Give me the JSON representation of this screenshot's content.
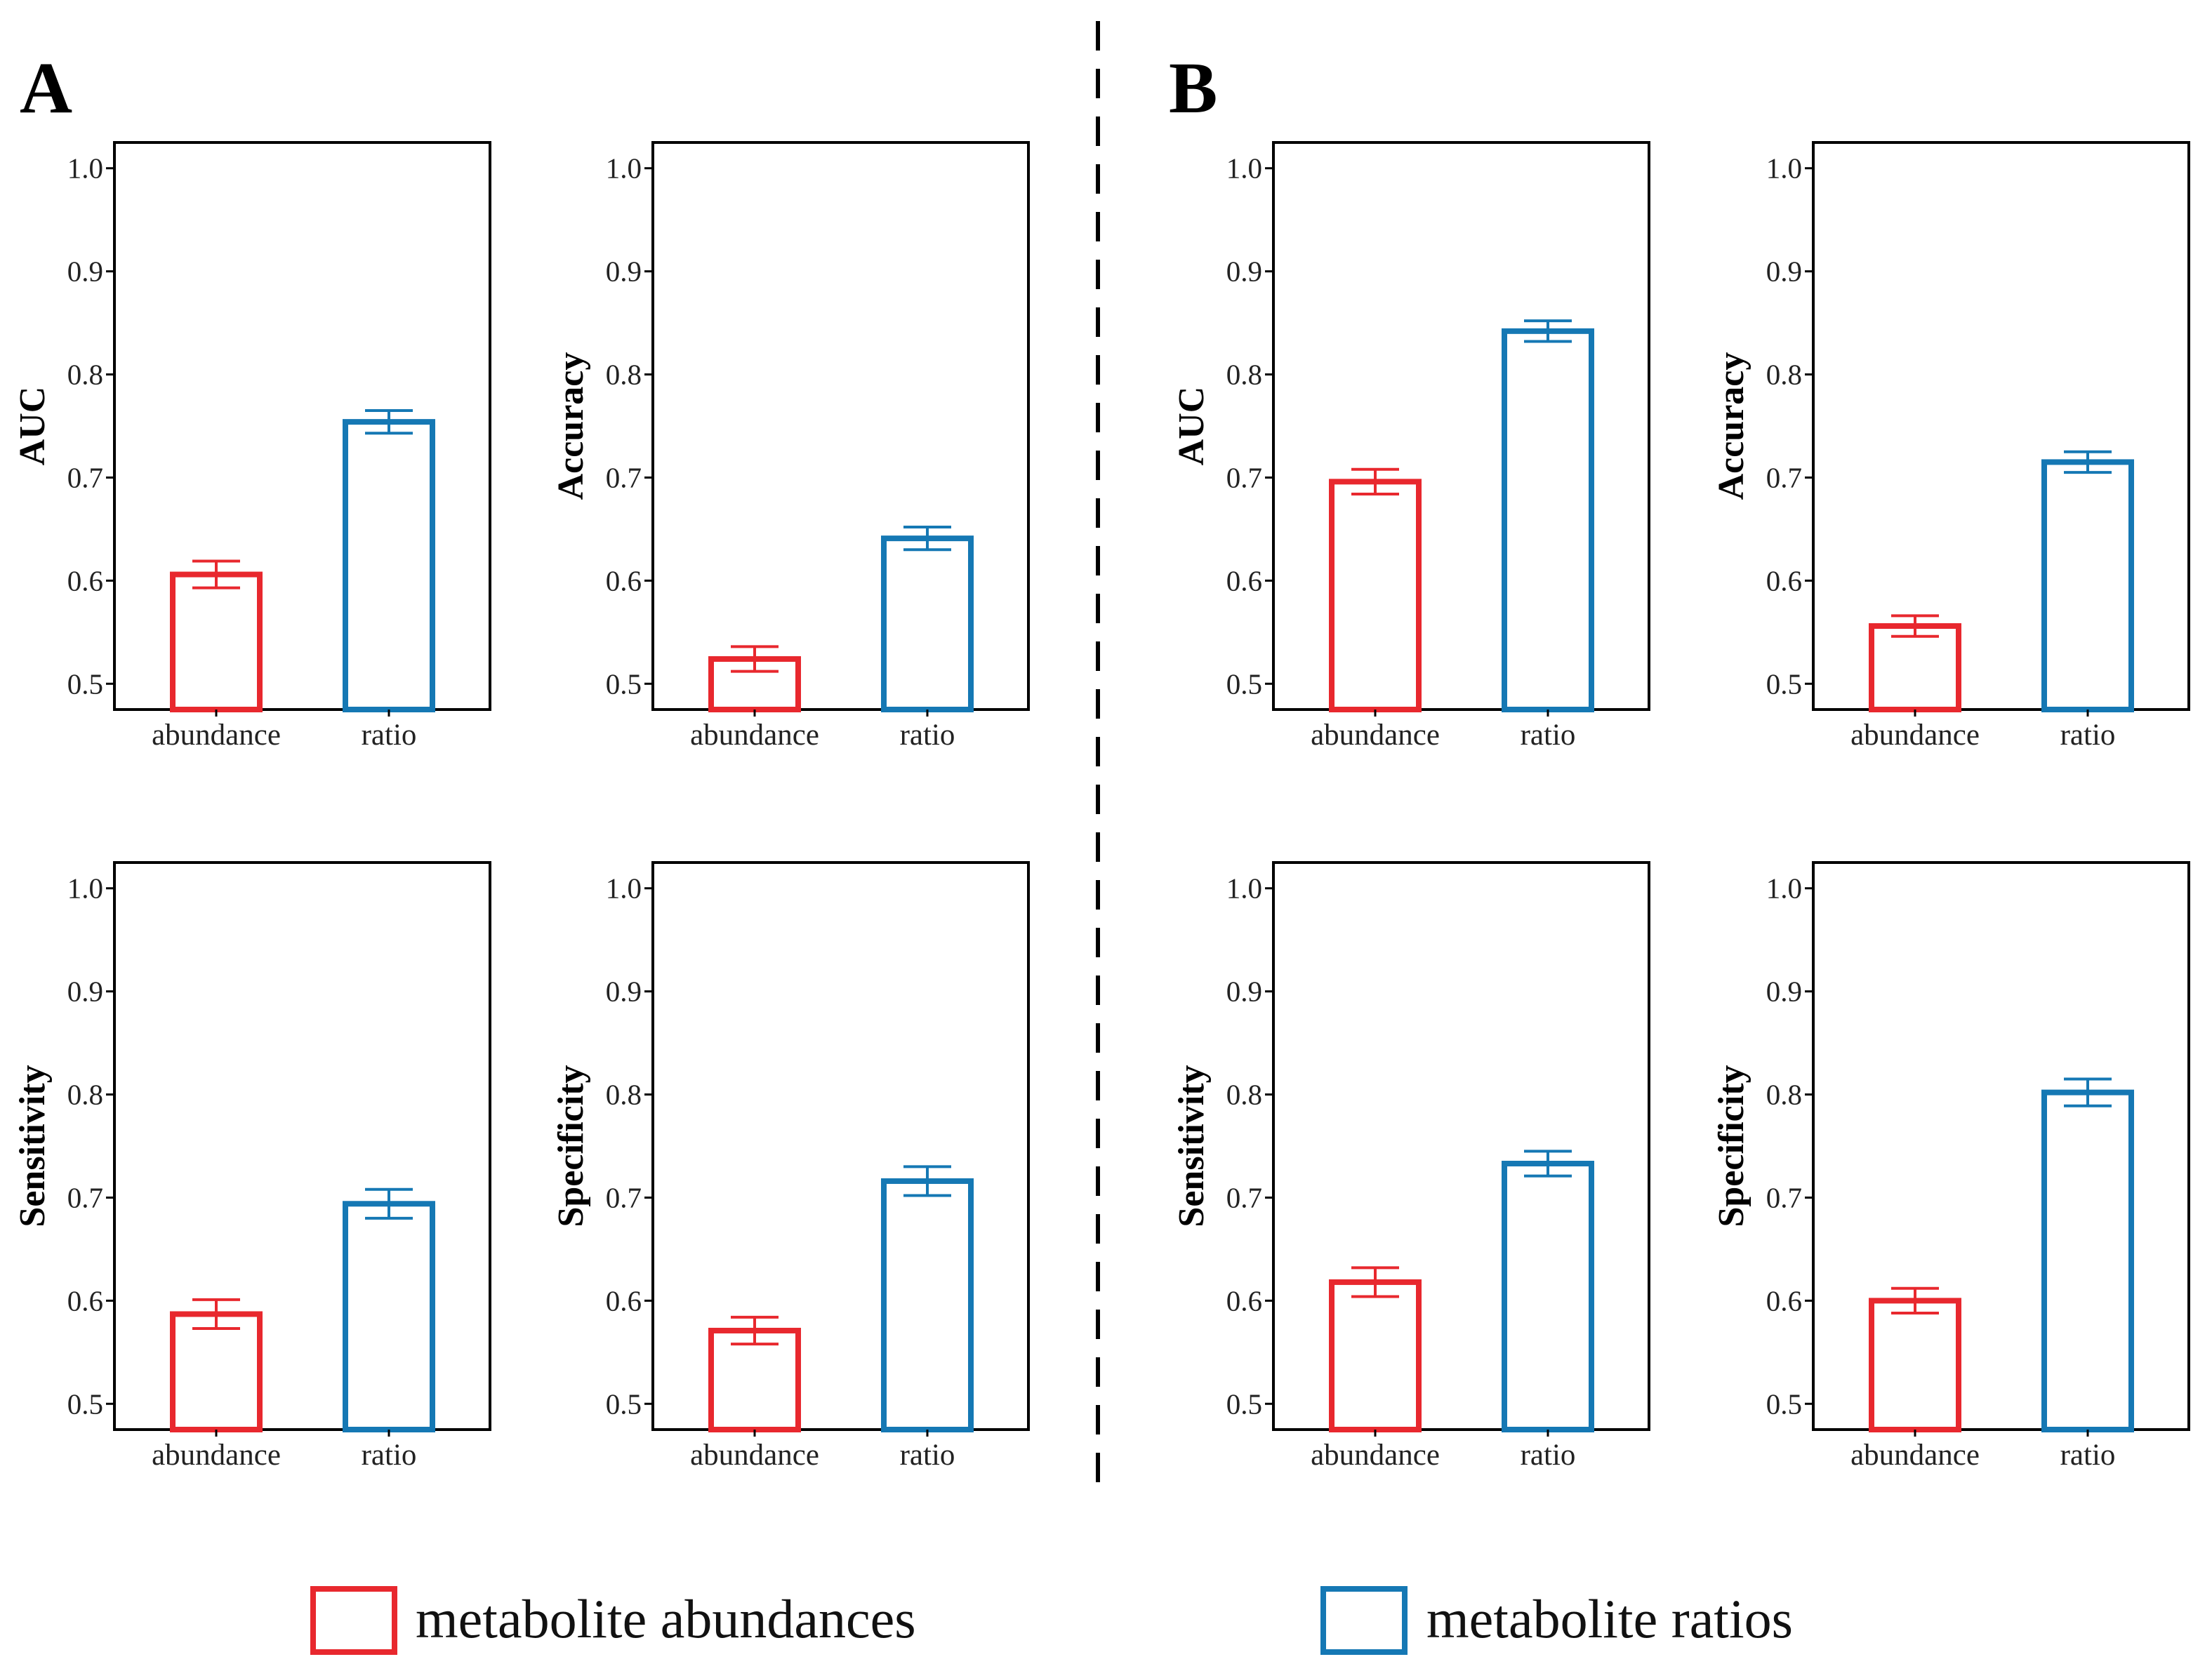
{
  "panels": [
    {
      "label": "A"
    },
    {
      "label": "B"
    }
  ],
  "colors": {
    "abundance": "#e8282e",
    "ratio": "#1578b4",
    "axis": "#000000",
    "divider": "#000000"
  },
  "legend": [
    {
      "label": "metabolite abundances",
      "color": "#e8282e"
    },
    {
      "label": "metabolite ratios",
      "color": "#1578b4"
    }
  ],
  "chart_data": [
    {
      "type": "bar",
      "panel": "A",
      "ylabel": "AUC",
      "categories": [
        "abundance",
        "ratio"
      ],
      "values": [
        0.606,
        0.754
      ],
      "errors": [
        0.013,
        0.011
      ],
      "ylim": [
        0.475,
        1.025
      ],
      "yticks": [
        "0.5",
        "0.6",
        "0.7",
        "0.8",
        "0.9",
        "1.0"
      ],
      "xlabel": ""
    },
    {
      "type": "bar",
      "panel": "A",
      "ylabel": "Accuracy",
      "categories": [
        "abundance",
        "ratio"
      ],
      "values": [
        0.524,
        0.641
      ],
      "errors": [
        0.012,
        0.011
      ],
      "ylim": [
        0.475,
        1.025
      ],
      "yticks": [
        "0.5",
        "0.6",
        "0.7",
        "0.8",
        "0.9",
        "1.0"
      ],
      "xlabel": ""
    },
    {
      "type": "bar",
      "panel": "B",
      "ylabel": "AUC",
      "categories": [
        "abundance",
        "ratio"
      ],
      "values": [
        0.696,
        0.842
      ],
      "errors": [
        0.012,
        0.01
      ],
      "ylim": [
        0.475,
        1.025
      ],
      "yticks": [
        "0.5",
        "0.6",
        "0.7",
        "0.8",
        "0.9",
        "1.0"
      ],
      "xlabel": ""
    },
    {
      "type": "bar",
      "panel": "B",
      "ylabel": "Accuracy",
      "categories": [
        "abundance",
        "ratio"
      ],
      "values": [
        0.556,
        0.715
      ],
      "errors": [
        0.01,
        0.01
      ],
      "ylim": [
        0.475,
        1.025
      ],
      "yticks": [
        "0.5",
        "0.6",
        "0.7",
        "0.8",
        "0.9",
        "1.0"
      ],
      "xlabel": ""
    },
    {
      "type": "bar",
      "panel": "A",
      "ylabel": "Sensitivity",
      "categories": [
        "abundance",
        "ratio"
      ],
      "values": [
        0.587,
        0.694
      ],
      "errors": [
        0.014,
        0.014
      ],
      "ylim": [
        0.475,
        1.025
      ],
      "yticks": [
        "0.5",
        "0.6",
        "0.7",
        "0.8",
        "0.9",
        "1.0"
      ],
      "xlabel": ""
    },
    {
      "type": "bar",
      "panel": "A",
      "ylabel": "Specificity",
      "categories": [
        "abundance",
        "ratio"
      ],
      "values": [
        0.571,
        0.716
      ],
      "errors": [
        0.013,
        0.014
      ],
      "ylim": [
        0.475,
        1.025
      ],
      "yticks": [
        "0.5",
        "0.6",
        "0.7",
        "0.8",
        "0.9",
        "1.0"
      ],
      "xlabel": ""
    },
    {
      "type": "bar",
      "panel": "B",
      "ylabel": "Sensitivity",
      "categories": [
        "abundance",
        "ratio"
      ],
      "values": [
        0.618,
        0.733
      ],
      "errors": [
        0.014,
        0.012
      ],
      "ylim": [
        0.475,
        1.025
      ],
      "yticks": [
        "0.5",
        "0.6",
        "0.7",
        "0.8",
        "0.9",
        "1.0"
      ],
      "xlabel": ""
    },
    {
      "type": "bar",
      "panel": "B",
      "ylabel": "Specificity",
      "categories": [
        "abundance",
        "ratio"
      ],
      "values": [
        0.6,
        0.802
      ],
      "errors": [
        0.012,
        0.013
      ],
      "ylim": [
        0.475,
        1.025
      ],
      "yticks": [
        "0.5",
        "0.6",
        "0.7",
        "0.8",
        "0.9",
        "1.0"
      ],
      "xlabel": ""
    }
  ]
}
